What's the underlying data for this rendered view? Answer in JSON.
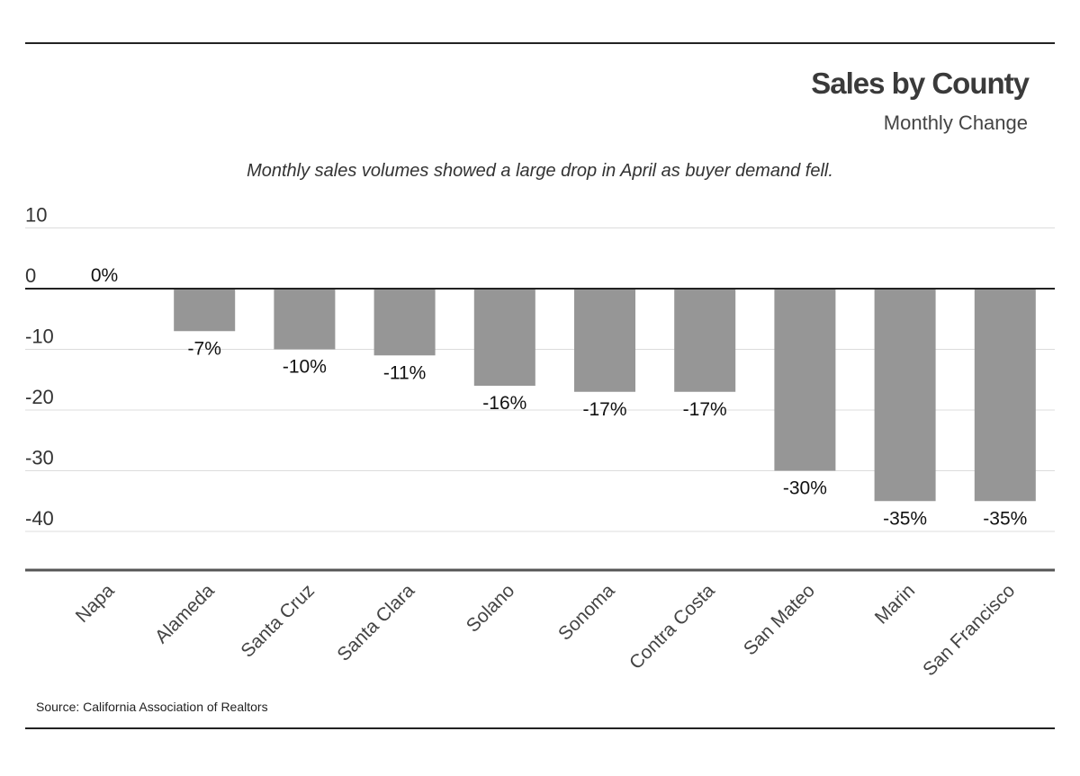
{
  "header": {
    "title": "Sales by County",
    "subtitle": "Monthly Change",
    "caption": "Monthly sales volumes showed a large drop in April as buyer demand fell."
  },
  "footer": {
    "source": "Source:  California Association of Realtors"
  },
  "colors": {
    "bar": "#969696",
    "gridline": "#dcdcdc",
    "axis": "#222222",
    "text": "#222222"
  },
  "chart_data": {
    "type": "bar",
    "title": "Sales by County",
    "subtitle": "Monthly Change",
    "categories": [
      "Napa",
      "Alameda",
      "Santa Cruz",
      "Santa Clara",
      "Solano",
      "Sonoma",
      "Contra Costa",
      "San Mateo",
      "Marin",
      "San Francisco"
    ],
    "values": [
      0,
      -7,
      -10,
      -11,
      -16,
      -17,
      -17,
      -30,
      -35,
      -35
    ],
    "data_labels": [
      "0%",
      "-7%",
      "-10%",
      "-11%",
      "-16%",
      "-17%",
      "-17%",
      "-30%",
      "-35%",
      "-35%"
    ],
    "yticks": [
      10,
      0,
      -10,
      -20,
      -30,
      -40
    ],
    "ytick_labels": [
      "10",
      "0",
      "-10",
      "-20",
      "-30",
      "-40"
    ],
    "ylim": [
      -46,
      10
    ],
    "xlabel": "",
    "ylabel": "",
    "grid": true,
    "legend": "none"
  }
}
